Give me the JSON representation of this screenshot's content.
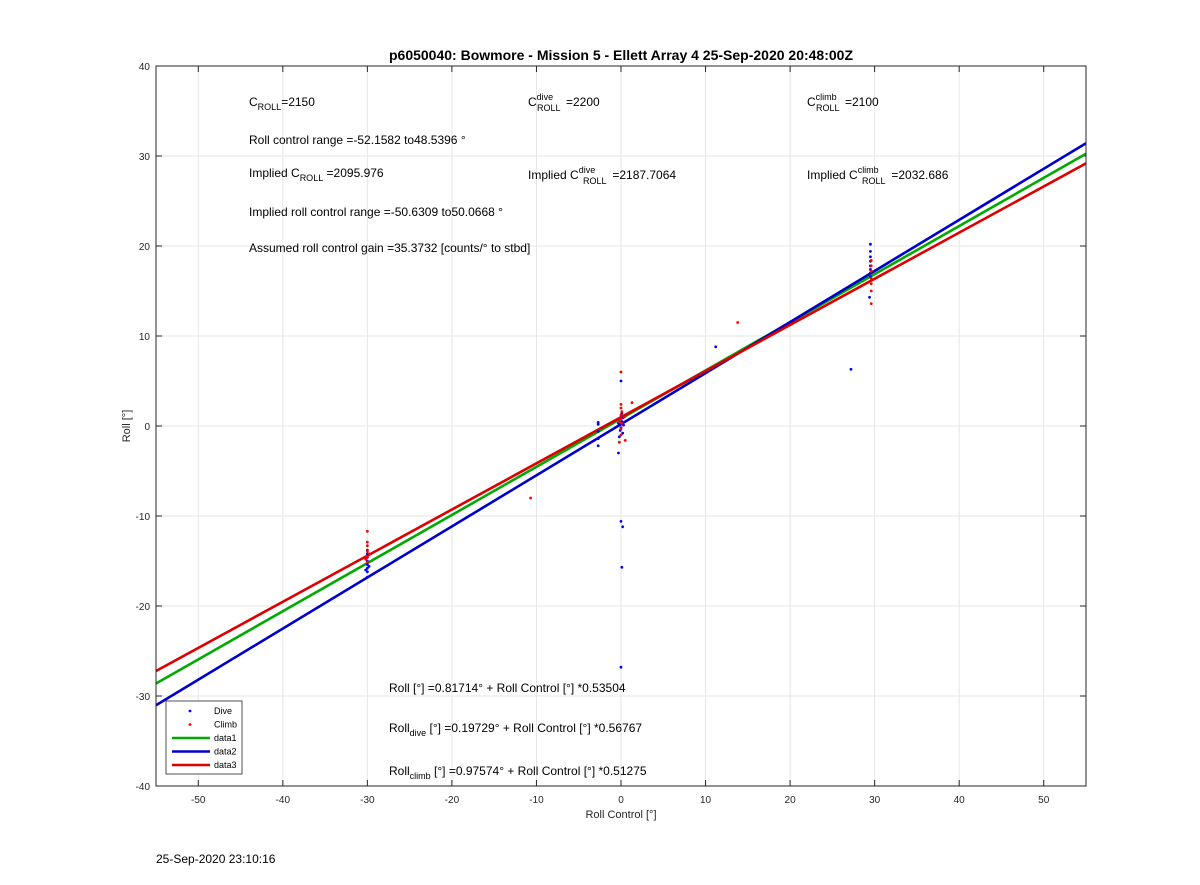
{
  "chart_data": {
    "type": "scatter",
    "title": "p6050040: Bowmore - Mission 5 - Ellett Array 4 25-Sep-2020 20:48:00Z",
    "xlabel": "Roll Control [°]",
    "ylabel": "Roll [°]",
    "xlim": [
      -55,
      55
    ],
    "ylim": [
      -40,
      40
    ],
    "xticks": [
      -50,
      -40,
      -30,
      -20,
      -10,
      0,
      10,
      20,
      30,
      40,
      50
    ],
    "yticks": [
      -40,
      -30,
      -20,
      -10,
      0,
      10,
      20,
      30,
      40
    ],
    "grid": true,
    "legend_position": "bottom-left",
    "series": [
      {
        "name": "Dive",
        "kind": "points",
        "color": "#0000ff",
        "points": [
          [
            -30,
            -16.8
          ],
          [
            -30,
            -16.2
          ],
          [
            -30,
            -15.8
          ],
          [
            -30,
            -15.4
          ],
          [
            -30,
            -15.0
          ],
          [
            -30,
            -14.6
          ],
          [
            -30,
            -14.2
          ],
          [
            -30,
            -13.8
          ],
          [
            -29.8,
            -15.6
          ],
          [
            -30.2,
            -16.0
          ],
          [
            -2.7,
            -2.2
          ],
          [
            -2.7,
            -1.4
          ],
          [
            -2.7,
            -0.6
          ],
          [
            -2.7,
            0.2
          ],
          [
            -2.7,
            0.4
          ],
          [
            -0.3,
            -3.0
          ],
          [
            -0.2,
            -1.2
          ],
          [
            -0.1,
            -0.5
          ],
          [
            0,
            -0.2
          ],
          [
            0,
            0.2
          ],
          [
            0.1,
            0.5
          ],
          [
            0.2,
            0.9
          ],
          [
            0.1,
            1.4
          ],
          [
            0,
            5.0
          ],
          [
            0.2,
            -0.8
          ],
          [
            -0.3,
            0.3
          ],
          [
            0.3,
            0.1
          ],
          [
            0,
            -10.6
          ],
          [
            0.2,
            -11.2
          ],
          [
            0.1,
            -15.7
          ],
          [
            0,
            -26.8
          ],
          [
            11.2,
            8.8
          ],
          [
            27.2,
            6.3
          ],
          [
            29.5,
            20.2
          ],
          [
            29.5,
            19.4
          ],
          [
            29.5,
            18.8
          ],
          [
            29.5,
            18.3
          ],
          [
            29.5,
            17.8
          ],
          [
            29.5,
            17.4
          ],
          [
            29.5,
            17.0
          ],
          [
            29.5,
            16.6
          ],
          [
            29.4,
            14.3
          ]
        ]
      },
      {
        "name": "Climb",
        "kind": "points",
        "color": "#ff0000",
        "points": [
          [
            -30,
            -11.7
          ],
          [
            -30,
            -12.9
          ],
          [
            -30,
            -13.3
          ],
          [
            -30,
            -13.9
          ],
          [
            -30,
            -14.5
          ],
          [
            -30,
            -15.1
          ],
          [
            -29.8,
            -14.2
          ],
          [
            -30.2,
            -14.8
          ],
          [
            -10.7,
            -8.0
          ],
          [
            -0.2,
            -1.8
          ],
          [
            0,
            -1.0
          ],
          [
            0,
            -0.3
          ],
          [
            0.1,
            0.3
          ],
          [
            0,
            0.8
          ],
          [
            0,
            1.2
          ],
          [
            0.1,
            1.6
          ],
          [
            0,
            2.0
          ],
          [
            0,
            2.4
          ],
          [
            0,
            6.0
          ],
          [
            -0.2,
            0.5
          ],
          [
            0.4,
            1.0
          ],
          [
            0.5,
            -1.6
          ],
          [
            1.3,
            2.6
          ],
          [
            13.8,
            11.5
          ],
          [
            29.6,
            13.6
          ],
          [
            29.6,
            15.0
          ],
          [
            29.6,
            15.8
          ],
          [
            29.6,
            16.4
          ],
          [
            29.6,
            17.2
          ],
          [
            29.6,
            17.8
          ],
          [
            29.6,
            18.4
          ]
        ]
      },
      {
        "name": "data1",
        "kind": "line",
        "color": "#00aa00",
        "intercept": 0.81714,
        "slope": 0.53504
      },
      {
        "name": "data2",
        "kind": "line",
        "color": "#0000cc",
        "intercept": 0.19729,
        "slope": 0.56767
      },
      {
        "name": "data3",
        "kind": "line",
        "color": "#dd0000",
        "intercept": 0.97574,
        "slope": 0.51275
      }
    ],
    "annotations": {
      "c_roll": {
        "base": "C",
        "sub": "ROLL",
        "sup": "",
        "value": "=2150"
      },
      "c_roll_dive": {
        "base": "C",
        "sub": "ROLL",
        "sup": "dive",
        "value": "=2200"
      },
      "c_roll_climb": {
        "base": "C",
        "sub": "ROLL",
        "sup": "climb",
        "value": "=2100"
      },
      "roll_range": "Roll control range =-52.1582 to48.5396 °",
      "implied_c_roll": {
        "prefix": "Implied C",
        "sub": "ROLL",
        "sup": "",
        "value": " =2095.976"
      },
      "implied_c_roll_dive": {
        "prefix": "Implied C",
        "sub": "ROLL",
        "sup": "dive",
        "value": " =2187.7064"
      },
      "implied_c_roll_climb": {
        "prefix": "Implied C",
        "sub": "ROLL",
        "sup": "climb",
        "value": " =2032.686"
      },
      "implied_range": "Implied roll control range =-50.6309 to50.0668 °",
      "gain": "Assumed roll control gain =35.3732 [counts/° to stbd]",
      "fit_all": {
        "prefix": "Roll",
        "sub": "",
        "text": " [°] =0.81714° + Roll Control [°] *0.53504"
      },
      "fit_dive": {
        "prefix": "Roll",
        "sub": "dive",
        "text": " [°] =0.19729° + Roll Control [°] *0.56767"
      },
      "fit_climb": {
        "prefix": "Roll",
        "sub": "climb",
        "text": " [°] =0.97574° + Roll Control [°] *0.51275"
      }
    }
  },
  "footer": {
    "timestamp": "25-Sep-2020 23:10:16"
  }
}
